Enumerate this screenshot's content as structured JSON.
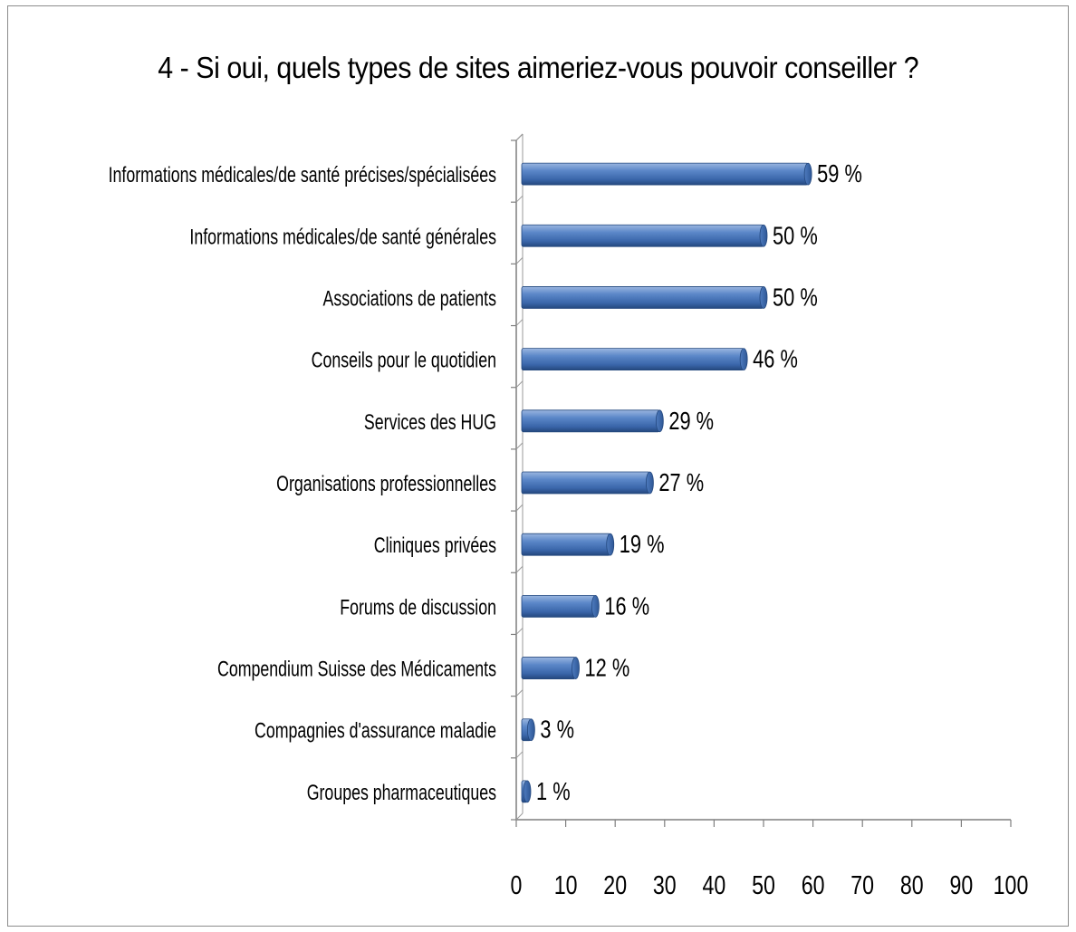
{
  "chart_data": {
    "type": "bar",
    "orientation": "horizontal",
    "style": "3d-cylinder",
    "title": "4 - Si oui, quels types de sites aimeriez-vous pouvoir conseiller ?",
    "categories": [
      "Informations médicales/de santé  précises/spécialisées",
      "Informations médicales/de santé  générales",
      "Associations de patients",
      "Conseils pour le quotidien",
      "Services des HUG",
      "Organisations professionnelles",
      "Cliniques privées",
      "Forums de discussion",
      "Compendium Suisse des Médicaments",
      "Compagnies d'assurance maladie",
      "Groupes pharmaceutiques"
    ],
    "values": [
      59,
      50,
      50,
      46,
      29,
      27,
      19,
      16,
      12,
      3,
      1
    ],
    "value_labels": [
      "59 %",
      "50 %",
      "50 %",
      "46 %",
      "29 %",
      "27 %",
      "19 %",
      "16 %",
      "12 %",
      "3 %",
      "1 %"
    ],
    "xlim": [
      0,
      100
    ],
    "xticks": [
      "0",
      "10",
      "20",
      "30",
      "40",
      "50",
      "60",
      "70",
      "80",
      "90",
      "100"
    ],
    "xlabel": "",
    "ylabel": "",
    "grid": false,
    "legend": "none",
    "bar_color": "#3f6fb5"
  }
}
